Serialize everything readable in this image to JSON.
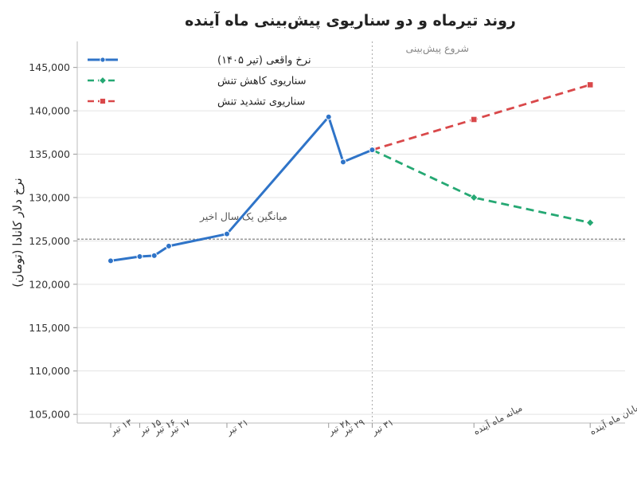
{
  "chart_data": {
    "type": "line",
    "title": "روند تیرماه و دو سناریوی پیش‌بینی ماه آینده",
    "xlabel": "",
    "ylabel": "نرخ دلار کانادا (تومان)",
    "ylim": [
      104000,
      148000
    ],
    "yticks": [
      105000,
      110000,
      115000,
      120000,
      125000,
      130000,
      135000,
      140000,
      145000
    ],
    "yticklabels": [
      "105,000",
      "110,000",
      "115,000",
      "120,000",
      "125,000",
      "130,000",
      "135,000",
      "140,000",
      "145,000"
    ],
    "categories": [
      "۱۳ تیر",
      "۱۵ تیر",
      "۱۶ تیر",
      "۱۷ تیر",
      "۲۱ تیر",
      "۲۸ تیر",
      "۲۹ تیر",
      "۳۱ تیر",
      "میانه ماه آینده",
      "پایان ماه آینده"
    ],
    "x_positions": [
      13,
      15,
      16,
      17,
      21,
      28,
      29,
      31,
      38,
      46
    ],
    "series": [
      {
        "name": "نرخ واقعی (تیر ۱۴۰۵)",
        "color": "#2f74c8",
        "style": "solid",
        "marker": "circle",
        "x": [
          13,
          15,
          16,
          17,
          21,
          28,
          29,
          31
        ],
        "values": [
          122700,
          123200,
          123300,
          124400,
          125800,
          139300,
          134100,
          135500
        ]
      },
      {
        "name": "سناریوی کاهش تنش",
        "color": "#25a873",
        "style": "dashed",
        "marker": "diamond",
        "x": [
          31,
          38,
          46
        ],
        "values": [
          135500,
          130000,
          127100
        ]
      },
      {
        "name": "سناریوی تشدید تنش",
        "color": "#d9484a",
        "style": "dashed",
        "marker": "square",
        "x": [
          31,
          38,
          46
        ],
        "values": [
          135500,
          139000,
          143000
        ]
      }
    ],
    "reference_lines": [
      {
        "orientation": "horizontal",
        "value": 125200,
        "label": "میانگین یک سال اخیر",
        "color": "#777777"
      },
      {
        "orientation": "vertical",
        "x": 31,
        "label": "شروع پیش‌بینی",
        "color": "#aaaaaa"
      }
    ],
    "grid": {
      "horizontal": true,
      "vertical": false
    },
    "legend_position": "top-left"
  }
}
